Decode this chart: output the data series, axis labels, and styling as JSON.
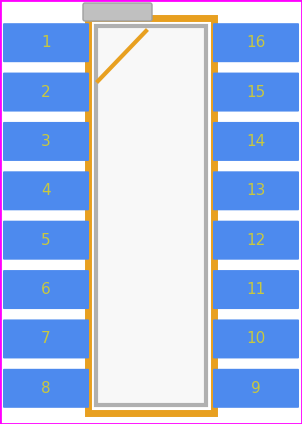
{
  "bg_color": "#ffffff",
  "border_color": "#ff00ff",
  "body_outline_color": "#e8a020",
  "body_inner_outline_color": "#b0b0b0",
  "body_inner_fill": "#f8f8f8",
  "pin_color": "#4d8aee",
  "pin_text_color": "#c8c840",
  "notch_line_color": "#e8a020",
  "tab_color": "#c0c0c0",
  "tab_outline_color": "#a0a0a0",
  "left_pins": [
    1,
    2,
    3,
    4,
    5,
    6,
    7,
    8
  ],
  "right_pins": [
    16,
    15,
    14,
    13,
    12,
    11,
    10,
    9
  ],
  "pin_fontsize": 11
}
